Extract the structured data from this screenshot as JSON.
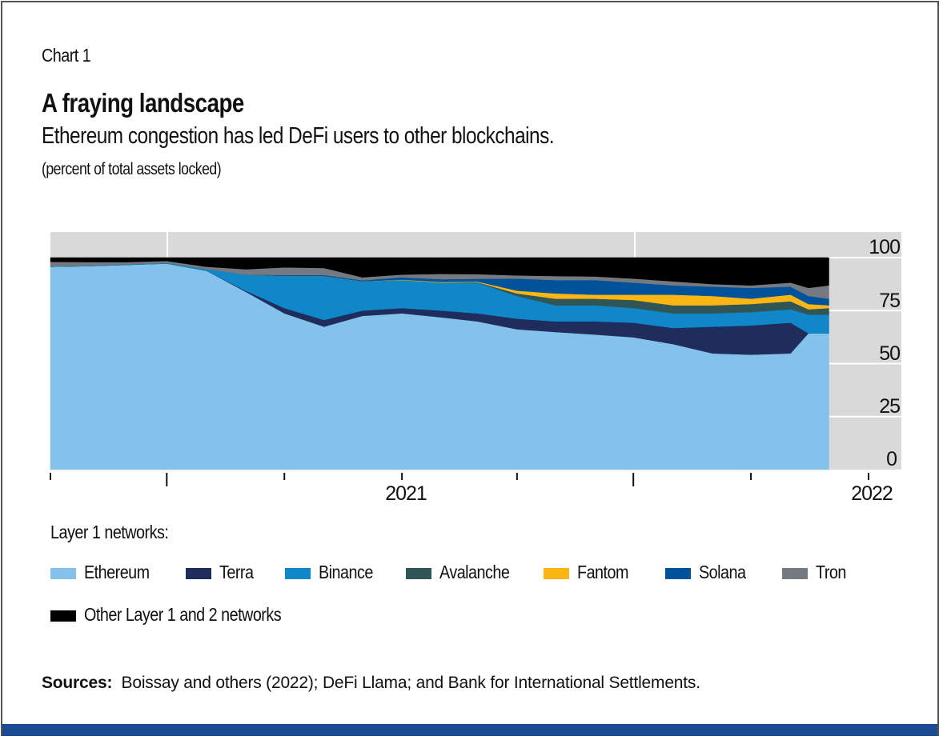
{
  "header": {
    "chart_label": "Chart 1",
    "title": "A fraying landscape",
    "subtitle": "Ethereum congestion has led DeFi users to other blockchains.",
    "unit": "(percent of total assets locked)"
  },
  "legend": {
    "heading": "Layer 1 networks:"
  },
  "sources": {
    "label": "Sources:",
    "text": "Boissay and others (2022); DeFi Llama; and Bank for International Settlements."
  },
  "colors": {
    "background_panel": "#d9d9d9",
    "bottom_bar": "#1b4b91"
  },
  "chart_data": {
    "type": "area",
    "stacked": true,
    "title": "A fraying landscape",
    "subtitle": "Ethereum congestion has led DeFi users to other blockchains.",
    "ylabel": "(percent of total assets locked)",
    "ylim": [
      0,
      100
    ],
    "yticks": [
      "0",
      "25",
      "50",
      "75",
      "100"
    ],
    "xlim": [
      "2020-04-01",
      "2022-01-15"
    ],
    "xtick_labels": [
      {
        "label": "2021",
        "date": "2021-01-01"
      },
      {
        "label": "2022",
        "date": "2022-01-01"
      }
    ],
    "xticks": [
      "2020-04-01",
      "2020-07-01",
      "2020-10-01",
      "2021-01-01",
      "2021-04-01",
      "2021-07-01",
      "2021-10-01",
      "2022-01-01"
    ],
    "grid": true,
    "legend_position": "bottom",
    "x": [
      "2020-04-01",
      "2020-05-01",
      "2020-06-01",
      "2020-07-01",
      "2020-08-01",
      "2020-09-01",
      "2020-10-01",
      "2020-11-01",
      "2020-12-01",
      "2021-01-01",
      "2021-02-01",
      "2021-03-01",
      "2021-04-01",
      "2021-05-01",
      "2021-06-01",
      "2021-07-01",
      "2021-08-01",
      "2021-09-01",
      "2021-10-01",
      "2021-11-01",
      "2021-11-15",
      "2021-12-01"
    ],
    "series": [
      {
        "name": "Ethereum",
        "color": "#84c1eb",
        "values": [
          95.7,
          96.0,
          96.6,
          97.2,
          93.8,
          83.8,
          73.7,
          67.4,
          72.5,
          73.7,
          71.8,
          69.9,
          66.2,
          64.9,
          63.7,
          62.4,
          59.2,
          54.8,
          54.2,
          54.8,
          64.3,
          64.3
        ]
      },
      {
        "name": "Terra",
        "color": "#1f2d5c",
        "values": [
          0,
          0,
          0,
          0,
          0,
          0.5,
          2.5,
          3.2,
          2.5,
          2.5,
          3.2,
          3.8,
          5.0,
          5.0,
          6.2,
          6.9,
          7.6,
          12.6,
          13.8,
          14.5,
          0,
          0
        ]
      },
      {
        "name": "Binance",
        "color": "#0f87c9",
        "values": [
          0.2,
          0.2,
          0.3,
          0.3,
          0.8,
          7.7,
          15.1,
          20.7,
          13.8,
          13.2,
          13.2,
          14.5,
          10.7,
          7.6,
          7.6,
          6.9,
          6.9,
          6.3,
          6.3,
          6.3,
          8.8,
          8.8
        ]
      },
      {
        "name": "Avalanche",
        "color": "#2f5556",
        "values": [
          0,
          0,
          0,
          0,
          0,
          0,
          0,
          0,
          0,
          0,
          0,
          0.2,
          1.2,
          3.1,
          3.1,
          3.8,
          3.8,
          3.8,
          3.8,
          3.8,
          2.5,
          3.1
        ]
      },
      {
        "name": "Fantom",
        "color": "#fbb614",
        "values": [
          0,
          0,
          0,
          0,
          0,
          0,
          0,
          0,
          0,
          0.2,
          0.3,
          0.3,
          1.3,
          2.5,
          1.9,
          2.5,
          5.0,
          4.4,
          2.5,
          3.1,
          2.5,
          1.3
        ]
      },
      {
        "name": "Solana",
        "color": "#00529b",
        "values": [
          0,
          0,
          0,
          0,
          0,
          0,
          0.5,
          0.5,
          0.5,
          1.1,
          1.3,
          1.3,
          5.7,
          6.3,
          6.9,
          5.7,
          4.4,
          4.4,
          5.1,
          3.8,
          3.8,
          3.1
        ]
      },
      {
        "name": "Tron",
        "color": "#747a80",
        "values": [
          2.1,
          1.7,
          1.0,
          0.9,
          1.1,
          2.5,
          3.6,
          3.3,
          1.4,
          1.3,
          2.5,
          2.2,
          1.5,
          1.9,
          1.7,
          1.9,
          1.9,
          1.2,
          1.2,
          1.9,
          3.8,
          6.3
        ]
      },
      {
        "name": "Other Layer 1 and 2 networks",
        "color": "#000000",
        "values": [
          2.0,
          2.1,
          2.1,
          1.6,
          4.3,
          5.5,
          4.6,
          4.9,
          9.3,
          8.0,
          7.7,
          7.8,
          8.4,
          8.7,
          8.9,
          9.9,
          11.2,
          12.5,
          13.1,
          11.8,
          14.3,
          13.1
        ]
      }
    ]
  }
}
